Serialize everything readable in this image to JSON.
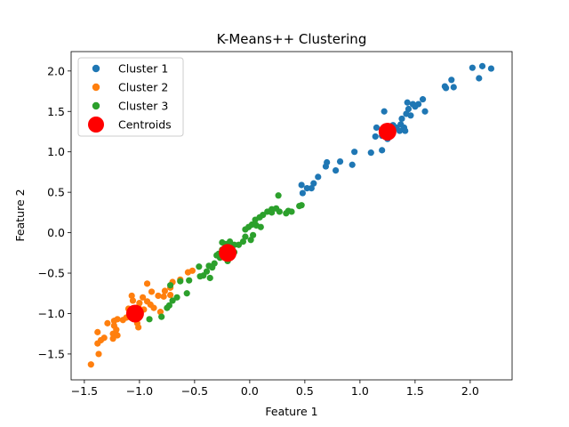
{
  "chart_data": {
    "type": "scatter",
    "title": "K-Means++ Clustering",
    "xlabel": "Feature 1",
    "ylabel": "Feature 2",
    "xlim": [
      -1.62,
      2.38
    ],
    "ylim": [
      -1.82,
      2.24
    ],
    "xticks": [
      -1.5,
      -1.0,
      -0.5,
      0.0,
      0.5,
      1.0,
      1.5,
      2.0
    ],
    "xtick_labels": [
      "−1.5",
      "−1.0",
      "−0.5",
      "0.0",
      "0.5",
      "1.0",
      "1.5",
      "2.0"
    ],
    "yticks": [
      -1.5,
      -1.0,
      -0.5,
      0.0,
      0.5,
      1.0,
      1.5,
      2.0
    ],
    "ytick_labels": [
      "−1.5",
      "−1.0",
      "−0.5",
      "0.0",
      "0.5",
      "1.0",
      "1.5",
      "2.0"
    ],
    "grid": false,
    "legend_position": "top-left",
    "series": [
      {
        "name": "Cluster 1",
        "color": "#1f77b4",
        "points": [
          [
            2.19,
            2.03
          ],
          [
            2.11,
            2.06
          ],
          [
            2.02,
            2.04
          ],
          [
            2.08,
            1.91
          ],
          [
            1.83,
            1.89
          ],
          [
            1.85,
            1.8
          ],
          [
            1.77,
            1.81
          ],
          [
            1.78,
            1.79
          ],
          [
            1.57,
            1.65
          ],
          [
            1.59,
            1.5
          ],
          [
            1.53,
            1.59
          ],
          [
            1.5,
            1.56
          ],
          [
            1.48,
            1.59
          ],
          [
            1.43,
            1.61
          ],
          [
            1.44,
            1.53
          ],
          [
            1.42,
            1.47
          ],
          [
            1.46,
            1.45
          ],
          [
            1.38,
            1.41
          ],
          [
            1.37,
            1.34
          ],
          [
            1.4,
            1.3
          ],
          [
            1.33,
            1.3
          ],
          [
            1.36,
            1.26
          ],
          [
            1.41,
            1.26
          ],
          [
            1.3,
            1.33
          ],
          [
            1.22,
            1.5
          ],
          [
            1.15,
            1.3
          ],
          [
            1.14,
            1.19
          ],
          [
            1.2,
            1.2
          ],
          [
            1.25,
            1.16
          ],
          [
            1.2,
            1.02
          ],
          [
            1.1,
            0.99
          ],
          [
            0.95,
            1.0
          ],
          [
            0.93,
            0.84
          ],
          [
            0.82,
            0.88
          ],
          [
            0.78,
            0.77
          ],
          [
            0.7,
            0.87
          ],
          [
            0.69,
            0.82
          ],
          [
            0.62,
            0.69
          ],
          [
            0.58,
            0.61
          ],
          [
            0.56,
            0.55
          ],
          [
            0.52,
            0.55
          ],
          [
            0.48,
            0.49
          ],
          [
            0.47,
            0.59
          ]
        ]
      },
      {
        "name": "Cluster 2",
        "color": "#ff7f0e",
        "points": [
          [
            -0.52,
            -0.47
          ],
          [
            -0.56,
            -0.49
          ],
          [
            -0.63,
            -0.58
          ],
          [
            -0.7,
            -0.61
          ],
          [
            -0.72,
            -0.68
          ],
          [
            -0.77,
            -0.72
          ],
          [
            -0.72,
            -0.77
          ],
          [
            -0.78,
            -0.79
          ],
          [
            -0.83,
            -0.78
          ],
          [
            -0.89,
            -0.73
          ],
          [
            -0.93,
            -0.63
          ],
          [
            -0.97,
            -0.8
          ],
          [
            -1.0,
            -0.87
          ],
          [
            -0.93,
            -0.85
          ],
          [
            -0.9,
            -0.89
          ],
          [
            -0.87,
            -0.93
          ],
          [
            -0.81,
            -0.98
          ],
          [
            -0.96,
            -0.95
          ],
          [
            -1.01,
            -0.92
          ],
          [
            -1.05,
            -0.97
          ],
          [
            -1.07,
            -0.78
          ],
          [
            -1.06,
            -0.84
          ],
          [
            -1.1,
            -0.94
          ],
          [
            -1.12,
            -1.05
          ],
          [
            -1.15,
            -1.08
          ],
          [
            -1.02,
            -1.12
          ],
          [
            -1.01,
            -1.17
          ],
          [
            -1.2,
            -1.07
          ],
          [
            -1.23,
            -1.09
          ],
          [
            -1.23,
            -1.15
          ],
          [
            -1.21,
            -1.2
          ],
          [
            -1.24,
            -1.25
          ],
          [
            -1.2,
            -1.27
          ],
          [
            -1.24,
            -1.31
          ],
          [
            -1.29,
            -1.12
          ],
          [
            -1.32,
            -1.3
          ],
          [
            -1.35,
            -1.33
          ],
          [
            -1.38,
            -1.23
          ],
          [
            -1.38,
            -1.37
          ],
          [
            -1.37,
            -1.5
          ],
          [
            -1.44,
            -1.63
          ]
        ]
      },
      {
        "name": "Cluster 3",
        "color": "#2ca02c",
        "points": [
          [
            0.26,
            0.46
          ],
          [
            0.24,
            0.3
          ],
          [
            0.2,
            0.29
          ],
          [
            0.2,
            0.25
          ],
          [
            0.27,
            0.26
          ],
          [
            0.35,
            0.27
          ],
          [
            0.38,
            0.26
          ],
          [
            0.33,
            0.24
          ],
          [
            0.45,
            0.33
          ],
          [
            0.47,
            0.34
          ],
          [
            0.16,
            0.26
          ],
          [
            0.12,
            0.22
          ],
          [
            0.09,
            0.19
          ],
          [
            0.05,
            0.16
          ],
          [
            0.02,
            0.1
          ],
          [
            -0.01,
            0.07
          ],
          [
            0.03,
            -0.03
          ],
          [
            0.06,
            0.09
          ],
          [
            -0.04,
            0.04
          ],
          [
            -0.04,
            -0.05
          ],
          [
            0.01,
            -0.09
          ],
          [
            0.1,
            0.07
          ],
          [
            -0.06,
            -0.11
          ],
          [
            -0.1,
            -0.15
          ],
          [
            -0.14,
            -0.15
          ],
          [
            -0.18,
            -0.11
          ],
          [
            -0.22,
            -0.14
          ],
          [
            -0.25,
            -0.12
          ],
          [
            -0.19,
            -0.21
          ],
          [
            -0.14,
            -0.24
          ],
          [
            -0.19,
            -0.29
          ],
          [
            -0.2,
            -0.35
          ],
          [
            -0.25,
            -0.21
          ],
          [
            -0.28,
            -0.26
          ],
          [
            -0.27,
            -0.31
          ],
          [
            -0.3,
            -0.28
          ],
          [
            -0.32,
            -0.38
          ],
          [
            -0.34,
            -0.43
          ],
          [
            -0.37,
            -0.41
          ],
          [
            -0.39,
            -0.48
          ],
          [
            -0.42,
            -0.53
          ],
          [
            -0.45,
            -0.54
          ],
          [
            -0.46,
            -0.42
          ],
          [
            -0.55,
            -0.59
          ],
          [
            -0.57,
            -0.75
          ],
          [
            -0.63,
            -0.6
          ],
          [
            -0.66,
            -0.8
          ],
          [
            -0.7,
            -0.84
          ],
          [
            -0.73,
            -0.9
          ],
          [
            -0.75,
            -0.93
          ],
          [
            -0.8,
            -1.04
          ],
          [
            -0.91,
            -1.07
          ],
          [
            -0.72,
            -0.65
          ],
          [
            -0.36,
            -0.56
          ]
        ]
      }
    ],
    "centroids": {
      "name": "Centroids",
      "color": "#ff0000",
      "points": [
        [
          1.25,
          1.25
        ],
        [
          -0.2,
          -0.25
        ],
        [
          -1.04,
          -1.0
        ]
      ]
    }
  }
}
